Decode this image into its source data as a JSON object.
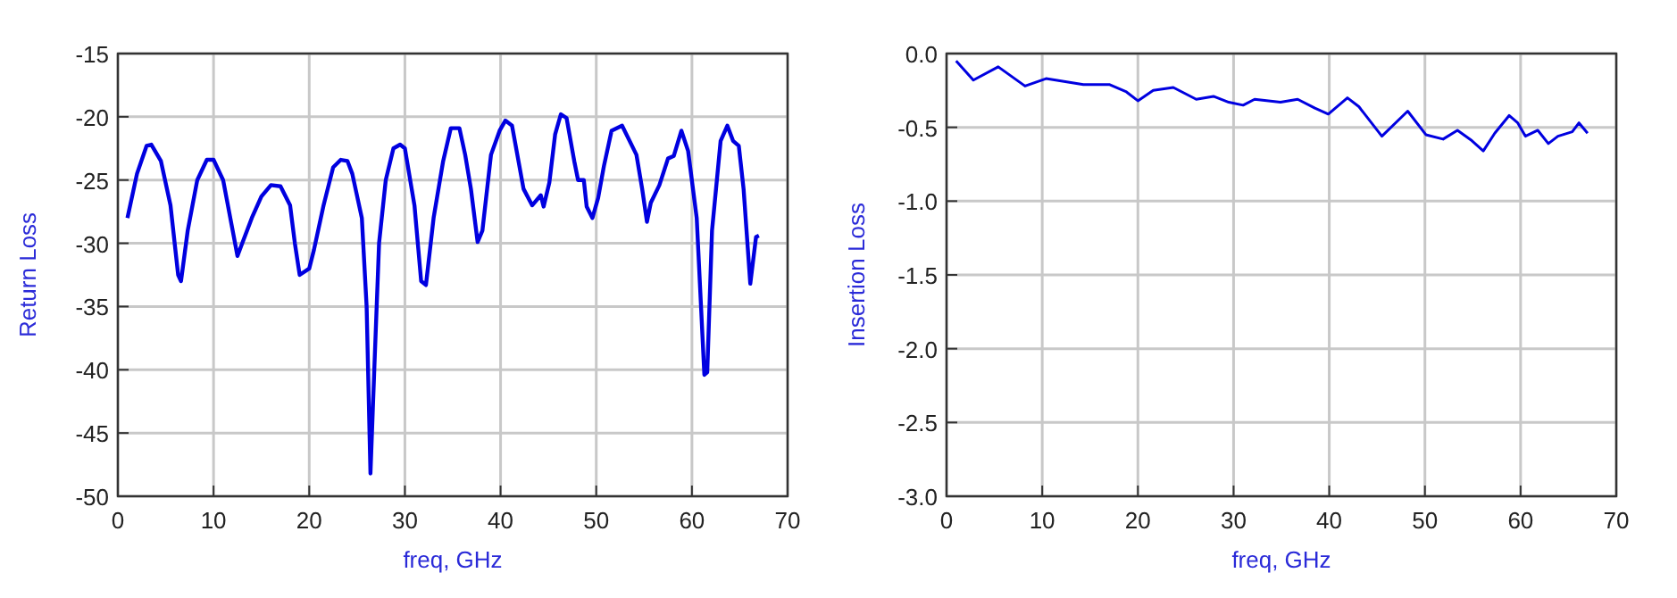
{
  "chart_data": [
    {
      "type": "line",
      "xlabel": "freq, GHz",
      "ylabel": "Return Loss",
      "xlim": [
        0,
        70
      ],
      "xticks": [
        0,
        10,
        20,
        30,
        40,
        50,
        60,
        70
      ],
      "ylim": [
        -50,
        -15
      ],
      "yticks": [
        -50,
        -45,
        -40,
        -35,
        -30,
        -25,
        -20,
        -15
      ],
      "grid": true,
      "marker": "none",
      "line_style": "solid",
      "series": [
        {
          "color": "#0000e0",
          "x": [
            1,
            2,
            3,
            3.5,
            4.5,
            5.5,
            6.3,
            6.6,
            7.3,
            8.3,
            9.3,
            10,
            11,
            12,
            12.5,
            13,
            14,
            15,
            16,
            17,
            18,
            18.5,
            19,
            20,
            20.5,
            21.5,
            22.5,
            23.3,
            24,
            24.5,
            25.5,
            26,
            26.4,
            26.8,
            27.3,
            28,
            28.8,
            29.5,
            30,
            31,
            31.7,
            32.2,
            33,
            34,
            34.8,
            35.7,
            36.3,
            36.9,
            37.6,
            38.1,
            39,
            39.9,
            40.5,
            41.2,
            42.4,
            43.3,
            44.2,
            44.5,
            45.1,
            45.7,
            46.3,
            46.9,
            47.7,
            48.1,
            48.7,
            49,
            49.6,
            50.2,
            50.8,
            51.6,
            52.7,
            54.2,
            54.8,
            55.3,
            55.7,
            56.6,
            57.5,
            58.1,
            58.9,
            59.6,
            60.5,
            61.3,
            61.6,
            62.1,
            63,
            63.7,
            64.3,
            64.9,
            65.4,
            66.1,
            66.7,
            67
          ],
          "values": [
            -28,
            -24.5,
            -22.3,
            -22.2,
            -23.5,
            -27,
            -32.5,
            -33,
            -29,
            -25,
            -23.4,
            -23.4,
            -25,
            -29,
            -31,
            -30,
            -28,
            -26.3,
            -25.4,
            -25.5,
            -27,
            -30,
            -32.5,
            -32,
            -30.5,
            -27,
            -24,
            -23.4,
            -23.5,
            -24.5,
            -28,
            -35,
            -48.2,
            -40,
            -30,
            -25,
            -22.5,
            -22.2,
            -22.5,
            -27,
            -33,
            -33.3,
            -28,
            -23.5,
            -20.9,
            -20.9,
            -23,
            -25.7,
            -29.9,
            -29,
            -23,
            -21.1,
            -20.3,
            -20.7,
            -25.7,
            -27,
            -26.2,
            -27.1,
            -25.2,
            -21.4,
            -19.8,
            -20.1,
            -23.5,
            -25,
            -25,
            -27.1,
            -28,
            -26.4,
            -23.9,
            -21.1,
            -20.7,
            -23,
            -25.7,
            -28.3,
            -26.8,
            -25.4,
            -23.3,
            -23.1,
            -21.1,
            -22.7,
            -28,
            -40.4,
            -40.2,
            -29,
            -21.9,
            -20.7,
            -21.9,
            -22.3,
            -25.7,
            -33.2,
            -29.5,
            -29.4
          ]
        }
      ]
    },
    {
      "type": "line",
      "xlabel": "freq, GHz",
      "ylabel": "Insertion Loss",
      "xlim": [
        0,
        70
      ],
      "xticks": [
        0,
        10,
        20,
        30,
        40,
        50,
        60,
        70
      ],
      "ylim": [
        -3,
        0
      ],
      "yticks": [
        {
          "value": -3,
          "label": "-3.0"
        },
        {
          "value": -2.5,
          "label": "-2.5"
        },
        {
          "value": -2,
          "label": "-2.0"
        },
        {
          "value": -1.5,
          "label": "-1.5"
        },
        {
          "value": -1,
          "label": "-1.0"
        },
        {
          "value": -0.5,
          "label": "-0.5"
        },
        {
          "value": 0,
          "label": "0.0"
        }
      ],
      "grid": true,
      "marker": "none",
      "line_style": "solid",
      "series": [
        {
          "color": "#0000e0",
          "x": [
            1,
            2.8,
            5.4,
            8.2,
            10.4,
            14.3,
            17,
            18.8,
            20,
            21.6,
            23.7,
            26.1,
            27.9,
            29.5,
            31,
            32.2,
            34.9,
            36.7,
            38.5,
            39.9,
            41.9,
            43.1,
            45.5,
            48.2,
            50.1,
            51.9,
            53.4,
            54.9,
            56.1,
            57.3,
            58.8,
            59.7,
            60.5,
            61.8,
            62.9,
            63.9,
            65.4,
            66.1,
            67
          ],
          "values": [
            -0.05,
            -0.18,
            -0.09,
            -0.22,
            -0.17,
            -0.21,
            -0.21,
            -0.26,
            -0.32,
            -0.25,
            -0.23,
            -0.31,
            -0.29,
            -0.33,
            -0.35,
            -0.31,
            -0.33,
            -0.31,
            -0.37,
            -0.41,
            -0.3,
            -0.36,
            -0.56,
            -0.39,
            -0.55,
            -0.58,
            -0.52,
            -0.59,
            -0.66,
            -0.54,
            -0.42,
            -0.47,
            -0.56,
            -0.52,
            -0.61,
            -0.56,
            -0.53,
            -0.47,
            -0.54
          ]
        }
      ]
    }
  ]
}
